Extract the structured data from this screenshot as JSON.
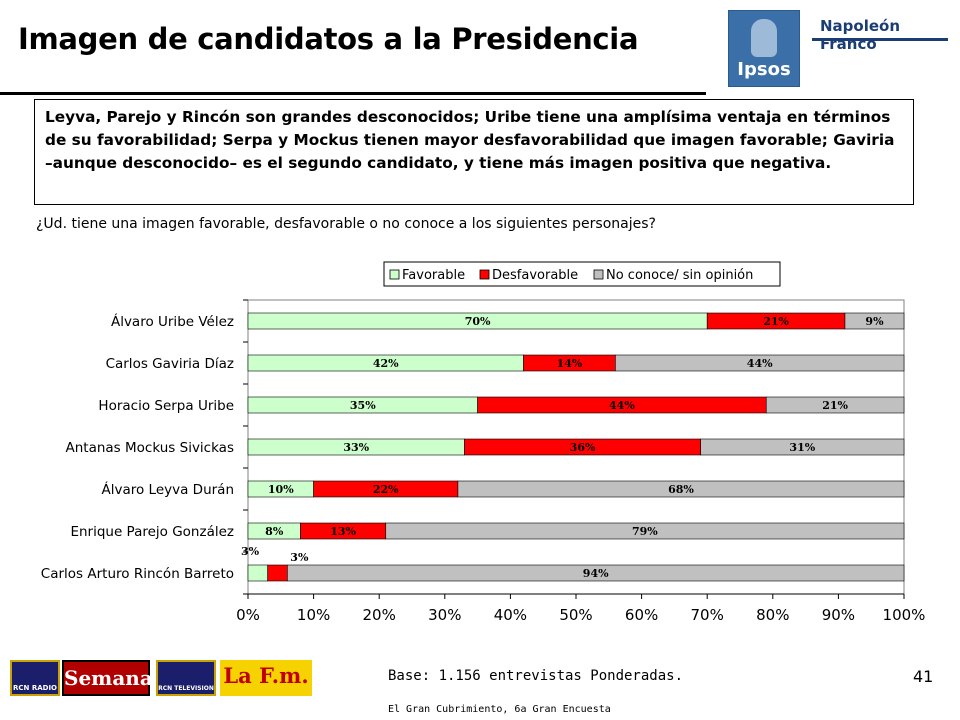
{
  "title": "Imagen de candidatos a la Presidencia",
  "brand": {
    "ipsos": "Ipsos",
    "napoleon": "Napoleón Franco"
  },
  "summary": "Leyva, Parejo y Rincón son grandes desconocidos; Uribe tiene una amplísima ventaja en términos de su favorabilidad; Serpa y Mockus tienen mayor desfavorabilidad que imagen favorable; Gaviria –aunque desconocido– es el segundo candidato, y tiene más imagen positiva que negativa.",
  "question": "¿Ud. tiene una imagen favorable, desfavorable o no conoce a los siguientes personajes?",
  "chart_data": {
    "type": "bar",
    "orientation": "horizontal-stacked-100",
    "categories": [
      "Álvaro Uribe Vélez",
      "Carlos Gaviria Díaz",
      "Horacio Serpa Uribe",
      "Antanas Mockus Sivickas",
      "Álvaro Leyva Durán",
      "Enrique Parejo González",
      "Carlos Arturo Rincón Barreto"
    ],
    "series": [
      {
        "name": "Favorable",
        "color": "#ccffcc",
        "values": [
          70,
          42,
          35,
          33,
          10,
          8,
          3
        ]
      },
      {
        "name": "Desfavorable",
        "color": "#ff0000",
        "values": [
          21,
          14,
          44,
          36,
          22,
          13,
          3
        ]
      },
      {
        "name": "No conoce/ sin opinión",
        "color": "#c0c0c0",
        "values": [
          9,
          44,
          21,
          31,
          68,
          79,
          94
        ]
      }
    ],
    "xticks": [
      "0%",
      "10%",
      "20%",
      "30%",
      "40%",
      "50%",
      "60%",
      "70%",
      "80%",
      "90%",
      "100%"
    ],
    "xlim": [
      0,
      100
    ],
    "legend": "top",
    "grid": false
  },
  "footer": {
    "logos": [
      "RCN RADIO",
      "Semana",
      "RCN TELEVISION",
      "La F.m."
    ],
    "base": "Base: 1.156 entrevistas Ponderadas.",
    "source": "El Gran Cubrimiento, 6a Gran Encuesta",
    "page": "41"
  }
}
